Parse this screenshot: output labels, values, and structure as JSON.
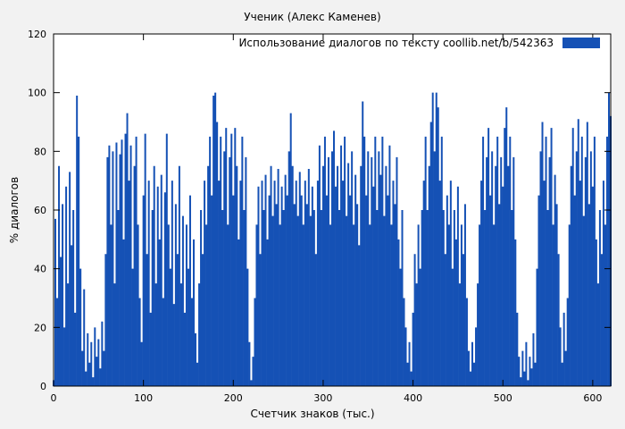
{
  "figure": {
    "background": "#f2f2f2",
    "plot_background": "#ffffff",
    "border_color": "#000000"
  },
  "chart_data": {
    "type": "bar",
    "title": "Ученик (Алекс Каменев)",
    "legend": "Использование диалогов по тексту  coollib.net/b/542363",
    "xlabel": "Счетчик знаков (тыс.)",
    "ylabel": "% диалогов",
    "xlim": [
      0,
      620
    ],
    "ylim": [
      0,
      120
    ],
    "xticks": [
      0,
      100,
      200,
      300,
      400,
      500,
      600
    ],
    "yticks": [
      0,
      20,
      40,
      60,
      80,
      100,
      120
    ],
    "grid": false,
    "legend_position": "top-right",
    "bar_color": "#1551b5",
    "x_start": 0,
    "x_step": 2,
    "values": [
      2,
      57,
      30,
      75,
      44,
      62,
      20,
      68,
      35,
      73,
      48,
      60,
      25,
      99,
      85,
      40,
      12,
      33,
      5,
      18,
      8,
      15,
      3,
      20,
      10,
      16,
      6,
      22,
      12,
      45,
      78,
      82,
      55,
      80,
      35,
      83,
      60,
      79,
      84,
      50,
      86,
      93,
      70,
      82,
      40,
      75,
      85,
      55,
      30,
      15,
      65,
      86,
      45,
      70,
      25,
      60,
      75,
      35,
      68,
      50,
      72,
      30,
      66,
      86,
      55,
      40,
      70,
      28,
      62,
      45,
      75,
      35,
      58,
      25,
      55,
      40,
      65,
      30,
      50,
      18,
      8,
      35,
      60,
      45,
      70,
      55,
      75,
      85,
      65,
      99,
      100,
      90,
      70,
      85,
      60,
      80,
      88,
      55,
      78,
      86,
      65,
      88,
      75,
      50,
      70,
      85,
      60,
      78,
      40,
      15,
      2,
      10,
      30,
      55,
      68,
      45,
      70,
      60,
      72,
      50,
      65,
      75,
      58,
      70,
      62,
      74,
      55,
      68,
      60,
      72,
      65,
      80,
      93,
      75,
      62,
      70,
      58,
      73,
      65,
      55,
      70,
      62,
      74,
      58,
      68,
      60,
      45,
      70,
      82,
      60,
      75,
      85,
      65,
      78,
      55,
      80,
      87,
      68,
      75,
      60,
      82,
      70,
      85,
      58,
      76,
      65,
      80,
      55,
      72,
      62,
      48,
      75,
      97,
      85,
      65,
      80,
      55,
      78,
      68,
      85,
      60,
      80,
      72,
      85,
      58,
      75,
      65,
      82,
      55,
      70,
      62,
      78,
      50,
      40,
      60,
      30,
      20,
      8,
      15,
      5,
      25,
      45,
      35,
      55,
      40,
      60,
      70,
      85,
      60,
      75,
      90,
      100,
      80,
      100,
      95,
      70,
      85,
      60,
      45,
      65,
      55,
      70,
      40,
      60,
      50,
      68,
      35,
      55,
      45,
      62,
      30,
      12,
      5,
      15,
      8,
      20,
      35,
      55,
      70,
      85,
      60,
      78,
      88,
      65,
      80,
      55,
      75,
      85,
      62,
      78,
      68,
      88,
      95,
      75,
      85,
      60,
      78,
      50,
      25,
      10,
      3,
      12,
      5,
      15,
      2,
      10,
      6,
      18,
      8,
      40,
      65,
      80,
      90,
      70,
      85,
      60,
      78,
      88,
      55,
      72,
      62,
      45,
      20,
      8,
      25,
      12,
      30,
      55,
      75,
      88,
      65,
      80,
      91,
      70,
      85,
      58,
      78,
      90,
      62,
      80,
      68,
      85,
      50,
      35,
      60,
      45,
      70,
      55,
      85,
      100,
      92
    ]
  }
}
